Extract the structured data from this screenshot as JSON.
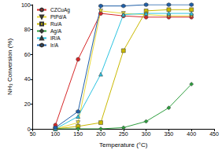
{
  "chart_data": {
    "type": "line",
    "x_label": "Temperature (°C)",
    "y_label": "NH₃ Conversion (%)",
    "xlim": [
      50,
      450
    ],
    "xticks": [
      50,
      100,
      150,
      200,
      250,
      300,
      350,
      400,
      450
    ],
    "ylim": [
      0,
      100
    ],
    "yticks": [
      0,
      20,
      40,
      60,
      80,
      100
    ],
    "grid": false,
    "legend": "upper left",
    "series": [
      {
        "name": "CZCuAg",
        "color": "#d62728",
        "marker": "circle",
        "x": [
          100,
          150,
          200,
          250,
          300,
          350,
          400
        ],
        "values": [
          3,
          56,
          93,
          91,
          90,
          90,
          90
        ]
      },
      {
        "name": "PtPd/A",
        "color": "#e8d83a",
        "marker": "triangle-down",
        "x": [
          100,
          150,
          200,
          250,
          300,
          350,
          400
        ],
        "values": [
          0,
          5,
          95,
          93,
          92,
          91,
          91
        ]
      },
      {
        "name": "Ru/A",
        "color": "#c9b800",
        "marker": "square",
        "x": [
          100,
          150,
          200,
          250,
          300,
          350,
          400
        ],
        "values": [
          0,
          2,
          5,
          63,
          95,
          96,
          96
        ]
      },
      {
        "name": "Ag/A",
        "color": "#2e9e3e",
        "marker": "diamond",
        "x": [
          100,
          150,
          200,
          250,
          300,
          350,
          400
        ],
        "values": [
          0,
          0,
          0,
          1,
          6,
          17,
          36
        ]
      },
      {
        "name": "IR/A",
        "color": "#2cc3e0",
        "marker": "triangle",
        "x": [
          100,
          150,
          200,
          250,
          300,
          350,
          400
        ],
        "values": [
          0,
          10,
          44,
          92,
          93,
          93,
          93
        ]
      },
      {
        "name": "Ir/A",
        "color": "#1f5fa8",
        "marker": "hexagon",
        "x": [
          100,
          150,
          200,
          250,
          300,
          350,
          400
        ],
        "values": [
          1,
          14,
          99,
          99,
          100,
          100,
          100
        ]
      }
    ]
  }
}
